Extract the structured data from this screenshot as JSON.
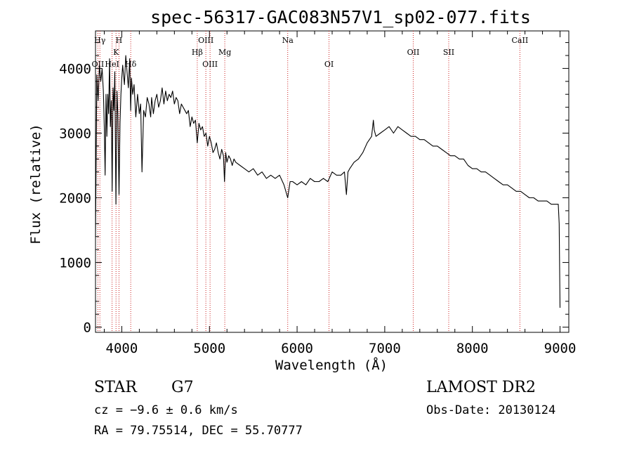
{
  "chart_data": {
    "type": "line",
    "title": "spec-56317-GAC083N57V1_sp02-077.fits",
    "xlabel": "Wavelength (Å)",
    "ylabel": "Flux (relative)",
    "xlim": [
      3700,
      9100
    ],
    "ylim": [
      -80,
      4580
    ],
    "xticks": [
      4000,
      5000,
      6000,
      7000,
      8000,
      9000
    ],
    "yticks": [
      0,
      1000,
      2000,
      3000,
      4000
    ],
    "grid": false,
    "series": [
      {
        "x": [
          3700,
          3715,
          3730,
          3745,
          3760,
          3775,
          3790,
          3800,
          3810,
          3820,
          3830,
          3840,
          3850,
          3860,
          3870,
          3880,
          3890,
          3900,
          3910,
          3920,
          3933,
          3945,
          3955,
          3968,
          3980,
          3990,
          4000,
          4010,
          4020,
          4030,
          4045,
          4060,
          4075,
          4090,
          4101,
          4110,
          4125,
          4140,
          4160,
          4180,
          4200,
          4215,
          4230,
          4250,
          4270,
          4290,
          4310,
          4330,
          4340,
          4360,
          4380,
          4400,
          4420,
          4440,
          4460,
          4480,
          4500,
          4520,
          4540,
          4560,
          4580,
          4600,
          4620,
          4640,
          4660,
          4680,
          4700,
          4720,
          4740,
          4760,
          4780,
          4800,
          4820,
          4840,
          4861,
          4880,
          4900,
          4920,
          4940,
          4960,
          4980,
          5000,
          5020,
          5040,
          5060,
          5080,
          5100,
          5120,
          5140,
          5160,
          5172,
          5185,
          5200,
          5220,
          5240,
          5260,
          5280,
          5300,
          5350,
          5400,
          5450,
          5500,
          5550,
          5600,
          5650,
          5700,
          5750,
          5800,
          5850,
          5893,
          5920,
          5950,
          6000,
          6050,
          6100,
          6150,
          6200,
          6250,
          6300,
          6350,
          6400,
          6450,
          6500,
          6540,
          6563,
          6580,
          6600,
          6650,
          6700,
          6750,
          6800,
          6850,
          6870,
          6880,
          6900,
          6950,
          7000,
          7050,
          7100,
          7150,
          7200,
          7250,
          7300,
          7350,
          7400,
          7450,
          7500,
          7550,
          7600,
          7650,
          7700,
          7750,
          7800,
          7850,
          7900,
          7950,
          8000,
          8050,
          8100,
          8150,
          8200,
          8250,
          8300,
          8350,
          8400,
          8450,
          8500,
          8550,
          8600,
          8650,
          8700,
          8750,
          8800,
          8850,
          8900,
          8950,
          8980,
          8990,
          9000
        ],
        "values": [
          1400,
          3900,
          3500,
          4050,
          3800,
          4000,
          3650,
          3100,
          2350,
          3600,
          2950,
          3600,
          3300,
          4150,
          3100,
          3500,
          2100,
          3700,
          3350,
          3950,
          1900,
          3650,
          3300,
          2050,
          3150,
          3600,
          3850,
          4050,
          3900,
          3750,
          4200,
          3950,
          3700,
          4150,
          3350,
          3850,
          3600,
          3750,
          3250,
          3600,
          3300,
          3450,
          2400,
          3350,
          3250,
          3550,
          3450,
          3250,
          3550,
          3300,
          3500,
          3600,
          3400,
          3500,
          3700,
          3450,
          3650,
          3500,
          3600,
          3550,
          3650,
          3450,
          3550,
          3500,
          3300,
          3450,
          3400,
          3350,
          3300,
          3350,
          3100,
          3250,
          3150,
          3200,
          2850,
          3150,
          3050,
          3100,
          2950,
          3000,
          2800,
          2950,
          2850,
          2700,
          2750,
          2850,
          2700,
          2600,
          2750,
          2650,
          2250,
          2700,
          2550,
          2650,
          2600,
          2500,
          2600,
          2550,
          2500,
          2450,
          2400,
          2450,
          2350,
          2400,
          2300,
          2350,
          2300,
          2350,
          2200,
          2000,
          2250,
          2250,
          2200,
          2250,
          2200,
          2300,
          2250,
          2250,
          2300,
          2250,
          2400,
          2350,
          2350,
          2400,
          2050,
          2400,
          2450,
          2550,
          2600,
          2700,
          2850,
          2950,
          3200,
          3050,
          2950,
          3000,
          3050,
          3100,
          3000,
          3100,
          3050,
          3000,
          2950,
          2950,
          2900,
          2900,
          2850,
          2800,
          2800,
          2750,
          2700,
          2650,
          2650,
          2600,
          2600,
          2500,
          2450,
          2450,
          2400,
          2400,
          2350,
          2300,
          2250,
          2200,
          2200,
          2150,
          2100,
          2100,
          2050,
          2000,
          2000,
          1950,
          1950,
          1950,
          1900,
          1900,
          1900,
          1600,
          300
        ]
      }
    ],
    "lines": [
      {
        "label": "OII",
        "wavelength": 3727,
        "row": 3
      },
      {
        "label": "Hγ",
        "wavelength": 3750,
        "row": 1
      },
      {
        "label": "HeI",
        "wavelength": 3889,
        "row": 3
      },
      {
        "label": "K",
        "wavelength": 3934,
        "row": 2
      },
      {
        "label": "H",
        "wavelength": 3968,
        "row": 1
      },
      {
        "label": "Hδ",
        "wavelength": 4102,
        "row": 3
      },
      {
        "label": "Hβ",
        "wavelength": 4861,
        "row": 2
      },
      {
        "label": "OIII",
        "wavelength": 4959,
        "row": 1
      },
      {
        "label": "OIII",
        "wavelength": 5007,
        "row": 3
      },
      {
        "label": "Mg",
        "wavelength": 5175,
        "row": 2
      },
      {
        "label": "Na",
        "wavelength": 5893,
        "row": 1
      },
      {
        "label": "OI",
        "wavelength": 6364,
        "row": 3
      },
      {
        "label": "OII",
        "wavelength": 7325,
        "row": 2
      },
      {
        "label": "SII",
        "wavelength": 7730,
        "row": 2
      },
      {
        "label": "CaII",
        "wavelength": 8542,
        "row": 1
      }
    ]
  },
  "footer": {
    "class": "STAR",
    "subclass": "G7",
    "cz": "cz = −9.6 ± 0.6 km/s",
    "coords": "RA =  79.75514, DEC =  55.70777",
    "survey": "LAMOST DR2",
    "obs_date": "Obs-Date: 20130124"
  },
  "colors": {
    "axes": "#000000",
    "line": "#000000",
    "marker": "#cc2222"
  }
}
